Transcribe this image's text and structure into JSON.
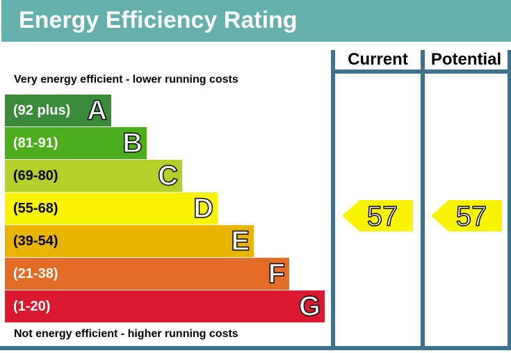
{
  "title": "Energy Efficiency Rating",
  "headers": {
    "current": "Current",
    "potential": "Potential"
  },
  "top_note": "Very energy efficient - lower running costs",
  "bottom_note": "Not energy efficient - higher running costs",
  "chart_data": {
    "type": "bar",
    "bands": [
      {
        "range": "(92 plus)",
        "letter": "A",
        "color": "#3a8a3a",
        "range_color": "#ffffff"
      },
      {
        "range": "(81-91)",
        "letter": "B",
        "color": "#4cae1a",
        "range_color": "#ffffff"
      },
      {
        "range": "(69-80)",
        "letter": "C",
        "color": "#b3cf2a",
        "range_color": "#000000"
      },
      {
        "range": "(55-68)",
        "letter": "D",
        "color": "#f9f400",
        "range_color": "#000000"
      },
      {
        "range": "(39-54)",
        "letter": "E",
        "color": "#e8b400",
        "range_color": "#000000"
      },
      {
        "range": "(21-38)",
        "letter": "F",
        "color": "#e36d26",
        "range_color": "#ffffff"
      },
      {
        "range": "(1-20)",
        "letter": "G",
        "color": "#d8192e",
        "range_color": "#ffffff"
      }
    ],
    "current": {
      "value": 57,
      "band": "D",
      "color": "#f9f400"
    },
    "potential": {
      "value": 57,
      "band": "D",
      "color": "#f9f400"
    }
  }
}
